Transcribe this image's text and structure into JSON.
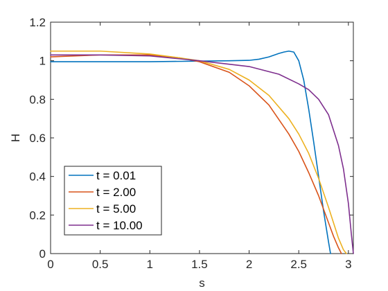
{
  "chart_data": {
    "type": "line",
    "xlabel": "s",
    "ylabel": "H",
    "xlim": [
      0,
      3.05
    ],
    "ylim": [
      0,
      1.2
    ],
    "xticks": [
      0,
      0.5,
      1,
      1.5,
      2,
      2.5,
      3
    ],
    "yticks": [
      0,
      0.2,
      0.4,
      0.6,
      0.8,
      1,
      1.2
    ],
    "xtick_labels": [
      "0",
      "0.5",
      "1",
      "1.5",
      "2",
      "2.5",
      "3"
    ],
    "ytick_labels": [
      "0",
      "0.2",
      "0.4",
      "0.6",
      "0.8",
      "1",
      "1.2"
    ],
    "grid": false,
    "legend_position": "bottom-left",
    "series": [
      {
        "name": "t = 0.01",
        "color": "#0072BD",
        "x": [
          0,
          0.5,
          1.0,
          1.5,
          1.8,
          2.0,
          2.1,
          2.2,
          2.3,
          2.35,
          2.4,
          2.45,
          2.5,
          2.55,
          2.6,
          2.65,
          2.7,
          2.75,
          2.8,
          2.82
        ],
        "y": [
          0.995,
          0.995,
          0.995,
          0.998,
          1.0,
          1.002,
          1.008,
          1.02,
          1.038,
          1.045,
          1.05,
          1.045,
          1.0,
          0.9,
          0.75,
          0.58,
          0.4,
          0.22,
          0.06,
          0.0
        ]
      },
      {
        "name": "t = 2.00",
        "color": "#D95319",
        "x": [
          0,
          0.5,
          1.0,
          1.3,
          1.5,
          1.8,
          2.0,
          2.2,
          2.4,
          2.5,
          2.6,
          2.7,
          2.8,
          2.85,
          2.9,
          2.93
        ],
        "y": [
          1.02,
          1.03,
          1.03,
          1.015,
          0.995,
          0.94,
          0.87,
          0.77,
          0.62,
          0.53,
          0.42,
          0.3,
          0.16,
          0.09,
          0.03,
          0.0
        ]
      },
      {
        "name": "t = 5.00",
        "color": "#EDB120",
        "x": [
          0,
          0.5,
          1.0,
          1.3,
          1.5,
          1.8,
          2.0,
          2.2,
          2.4,
          2.5,
          2.6,
          2.7,
          2.8,
          2.85,
          2.9,
          2.95,
          2.98
        ],
        "y": [
          1.05,
          1.05,
          1.035,
          1.015,
          1.0,
          0.955,
          0.9,
          0.82,
          0.7,
          0.62,
          0.52,
          0.39,
          0.24,
          0.16,
          0.08,
          0.02,
          0.0
        ]
      },
      {
        "name": "t = 10.00",
        "color": "#7E2F8E",
        "x": [
          0,
          0.5,
          1.0,
          1.5,
          2.0,
          2.3,
          2.5,
          2.6,
          2.7,
          2.8,
          2.9,
          2.95,
          3.0,
          3.03,
          3.05
        ],
        "y": [
          1.03,
          1.03,
          1.025,
          1.0,
          0.97,
          0.93,
          0.88,
          0.85,
          0.8,
          0.72,
          0.56,
          0.44,
          0.26,
          0.1,
          0.0
        ]
      }
    ]
  }
}
